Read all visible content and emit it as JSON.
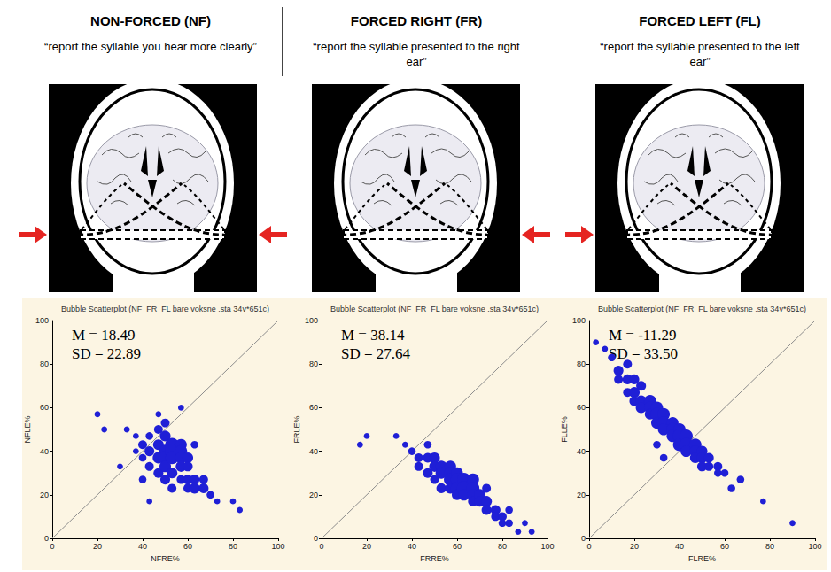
{
  "panels": [
    {
      "heading": "NON-FORCED (NF)",
      "instruction": "“report the syllable you hear more clearly”",
      "stimulated_ears": [
        "left",
        "right"
      ]
    },
    {
      "heading": "FORCED RIGHT (FR)",
      "instruction": "“report the syllable presented to the right ear”",
      "stimulated_ears": [
        "right"
      ]
    },
    {
      "heading": "FORCED LEFT (FL)",
      "instruction": "“report the syllable presented to the left ear”",
      "stimulated_ears": [
        "left"
      ]
    }
  ],
  "chart_data": [
    {
      "type": "scatter",
      "title": "Bubble Scatterplot (NF_FR_FL bare voksne .sta 34v*651c)",
      "x_label": "NFRE%",
      "y_label": "NFLE%",
      "xlim": [
        0,
        100
      ],
      "ylim": [
        0,
        100
      ],
      "xticks": [
        0,
        20,
        40,
        60,
        80,
        100
      ],
      "yticks": [
        0,
        20,
        40,
        60,
        80,
        100
      ],
      "grid": false,
      "annotations": [
        "M = 18.49",
        "SD = 22.89"
      ],
      "series": [
        {
          "type": "scatter",
          "marker": "circle",
          "color": "#1f1fd6",
          "x": [
            40,
            40,
            43,
            43,
            43,
            47,
            47,
            47,
            47,
            50,
            50,
            50,
            50,
            50,
            50,
            53,
            53,
            53,
            53,
            53,
            57,
            57,
            57,
            57,
            57,
            60,
            60,
            60,
            60,
            63,
            63,
            67,
            67,
            70,
            37,
            33,
            30,
            23,
            20,
            43,
            73,
            80,
            83,
            57,
            47,
            63,
            40,
            37
          ],
          "y": [
            43,
            37,
            47,
            40,
            33,
            50,
            43,
            37,
            30,
            53,
            47,
            40,
            37,
            33,
            27,
            43,
            40,
            37,
            30,
            23,
            43,
            40,
            37,
            33,
            27,
            37,
            33,
            27,
            23,
            27,
            23,
            23,
            27,
            20,
            40,
            50,
            33,
            50,
            57,
            17,
            17,
            17,
            13,
            60,
            57,
            43,
            27,
            47
          ],
          "sizes": [
            3,
            2,
            2,
            4,
            3,
            3,
            5,
            6,
            4,
            3,
            5,
            8,
            9,
            6,
            4,
            9,
            10,
            8,
            5,
            3,
            6,
            7,
            6,
            5,
            3,
            5,
            4,
            4,
            3,
            4,
            5,
            4,
            3,
            2,
            1,
            1,
            1,
            1,
            1,
            1,
            1,
            1,
            1,
            1,
            1,
            2,
            2,
            1
          ]
        },
        {
          "type": "line",
          "line_style": "solid",
          "color": "#8c8c8c",
          "x": [
            0,
            100
          ],
          "y": [
            0,
            100
          ]
        }
      ]
    },
    {
      "type": "scatter",
      "title": "Bubble Scatterplot (NF_FR_FL bare voksne .sta 34v*651c)",
      "x_label": "FRRE%",
      "y_label": "FRLE%",
      "xlim": [
        0,
        100
      ],
      "ylim": [
        0,
        100
      ],
      "xticks": [
        0,
        20,
        40,
        60,
        80,
        100
      ],
      "yticks": [
        0,
        20,
        40,
        60,
        80,
        100
      ],
      "grid": false,
      "annotations": [
        "M = 38.14",
        "SD = 27.64"
      ],
      "series": [
        {
          "type": "scatter",
          "marker": "circle",
          "color": "#1f1fd6",
          "x": [
            43,
            43,
            47,
            47,
            50,
            50,
            50,
            53,
            53,
            53,
            57,
            57,
            57,
            57,
            60,
            60,
            60,
            60,
            63,
            63,
            63,
            67,
            67,
            67,
            67,
            70,
            70,
            73,
            73,
            77,
            77,
            80,
            80,
            83,
            87,
            40,
            37,
            33,
            20,
            17,
            90,
            47,
            73,
            83,
            93
          ],
          "y": [
            37,
            33,
            37,
            30,
            37,
            33,
            27,
            33,
            30,
            23,
            33,
            30,
            27,
            23,
            30,
            27,
            23,
            20,
            27,
            23,
            20,
            27,
            23,
            20,
            17,
            20,
            17,
            17,
            13,
            13,
            10,
            10,
            7,
            7,
            3,
            40,
            43,
            47,
            47,
            43,
            7,
            43,
            23,
            13,
            3
          ],
          "sizes": [
            3,
            3,
            4,
            4,
            5,
            5,
            3,
            6,
            6,
            4,
            6,
            7,
            8,
            5,
            6,
            8,
            8,
            5,
            9,
            10,
            6,
            7,
            8,
            6,
            4,
            6,
            5,
            5,
            4,
            4,
            3,
            3,
            2,
            2,
            1,
            2,
            1,
            1,
            1,
            1,
            1,
            2,
            3,
            2,
            1
          ]
        },
        {
          "type": "line",
          "line_style": "solid",
          "color": "#8c8c8c",
          "x": [
            0,
            100
          ],
          "y": [
            0,
            100
          ]
        }
      ]
    },
    {
      "type": "scatter",
      "title": "Bubble Scatterplot (NF_FR_FL bare voksne .sta 34v*651c)",
      "x_label": "FLRE%",
      "y_label": "FLLE%",
      "xlim": [
        0,
        100
      ],
      "ylim": [
        0,
        100
      ],
      "xticks": [
        0,
        20,
        40,
        60,
        80,
        100
      ],
      "yticks": [
        0,
        20,
        40,
        60,
        80,
        100
      ],
      "grid": false,
      "annotations": [
        "M = -11.29",
        "SD = 33.50"
      ],
      "series": [
        {
          "type": "scatter",
          "marker": "circle",
          "color": "#1f1fd6",
          "x": [
            7,
            10,
            13,
            13,
            17,
            17,
            17,
            20,
            20,
            20,
            23,
            23,
            23,
            27,
            27,
            27,
            30,
            30,
            30,
            33,
            33,
            33,
            37,
            37,
            37,
            40,
            40,
            40,
            43,
            43,
            43,
            47,
            47,
            47,
            50,
            50,
            50,
            53,
            53,
            57,
            57,
            60,
            67,
            63,
            3,
            77,
            90,
            33,
            30
          ],
          "y": [
            87,
            83,
            77,
            73,
            80,
            73,
            67,
            73,
            67,
            63,
            70,
            63,
            60,
            63,
            60,
            57,
            60,
            57,
            53,
            57,
            53,
            50,
            53,
            50,
            47,
            50,
            47,
            43,
            47,
            43,
            40,
            43,
            40,
            37,
            40,
            37,
            33,
            37,
            33,
            33,
            30,
            30,
            27,
            23,
            90,
            17,
            7,
            37,
            43
          ],
          "sizes": [
            1,
            2,
            4,
            3,
            3,
            4,
            3,
            4,
            5,
            4,
            4,
            6,
            5,
            7,
            7,
            5,
            7,
            8,
            6,
            7,
            8,
            6,
            6,
            8,
            7,
            7,
            9,
            8,
            8,
            9,
            6,
            7,
            6,
            5,
            5,
            5,
            4,
            4,
            3,
            3,
            2,
            2,
            2,
            2,
            1,
            1,
            1,
            2,
            2
          ]
        },
        {
          "type": "line",
          "line_style": "solid",
          "color": "#8c8c8c",
          "x": [
            0,
            100
          ],
          "y": [
            0,
            100
          ]
        }
      ]
    }
  ]
}
